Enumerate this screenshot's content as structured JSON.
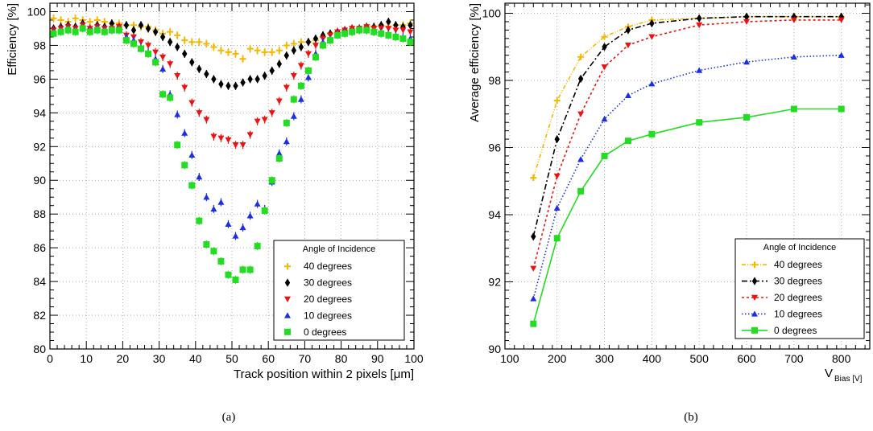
{
  "colors": {
    "40 degrees": "#f5b800",
    "30 degrees": "#000000",
    "20 degrees": "#ee1111",
    "10 degrees": "#1a2ee8",
    "0 degrees": "#22dd22"
  },
  "chart_data": [
    {
      "type": "scatter",
      "caption": "(a)",
      "xlabel": "Track position within 2 pixels [μm]",
      "ylabel": "Efficiency [%]",
      "xlim": [
        0,
        100
      ],
      "ylim": [
        80,
        100.5
      ],
      "x_ticks": [
        "0",
        "10",
        "20",
        "30",
        "40",
        "50",
        "60",
        "70",
        "80",
        "90",
        "100"
      ],
      "y_ticks": [
        "80",
        "82",
        "84",
        "86",
        "88",
        "90",
        "92",
        "94",
        "96",
        "98",
        "100"
      ],
      "grid": true,
      "legend": {
        "title": "Angle of Incidence",
        "position": "bottom-right"
      },
      "x": [
        1,
        3,
        5,
        7,
        9,
        11,
        13,
        15,
        17,
        19,
        21,
        23,
        25,
        27,
        29,
        31,
        33,
        35,
        37,
        39,
        41,
        43,
        45,
        47,
        49,
        51,
        53,
        55,
        57,
        59,
        61,
        63,
        65,
        67,
        69,
        71,
        73,
        75,
        77,
        79,
        81,
        83,
        85,
        87,
        89,
        91,
        93,
        95,
        97,
        99
      ],
      "series": [
        {
          "name": "40 degrees",
          "marker": "cross",
          "values": [
            99.6,
            99.5,
            99.4,
            99.6,
            99.5,
            99.4,
            99.5,
            99.4,
            99.3,
            99.3,
            99.2,
            99.2,
            99.1,
            99.1,
            98.9,
            98.7,
            98.8,
            98.6,
            98.3,
            98.2,
            98.2,
            98.1,
            97.9,
            97.7,
            97.6,
            97.5,
            97.2,
            97.8,
            97.7,
            97.6,
            97.6,
            97.7,
            98.0,
            98.1,
            98.2,
            98.2,
            98.3,
            98.5,
            98.7,
            98.8,
            98.9,
            98.9,
            99.0,
            99.1,
            99.1,
            99.2,
            99.1,
            99.2,
            99.2,
            99.3
          ]
        },
        {
          "name": "30 degrees",
          "marker": "diamond",
          "values": [
            99.0,
            99.1,
            99.2,
            99.1,
            99.3,
            99.0,
            99.2,
            99.1,
            99.3,
            99.1,
            99.2,
            98.9,
            99.2,
            99.0,
            98.8,
            98.5,
            98.2,
            97.9,
            97.5,
            97.0,
            96.6,
            96.3,
            96.0,
            95.7,
            95.6,
            95.6,
            95.8,
            96.0,
            96.0,
            96.2,
            96.5,
            96.9,
            97.4,
            97.7,
            97.9,
            98.2,
            98.4,
            98.6,
            98.7,
            98.8,
            98.9,
            99.0,
            99.0,
            99.1,
            99.1,
            99.2,
            99.4,
            99.2,
            99.1,
            99.2
          ]
        },
        {
          "name": "20 degrees",
          "marker": "down-triangle",
          "values": [
            98.9,
            99.0,
            99.1,
            99.0,
            99.2,
            99.0,
            99.1,
            99.0,
            99.0,
            99.1,
            98.6,
            98.5,
            98.2,
            98.0,
            97.6,
            97.3,
            96.9,
            96.2,
            95.5,
            94.6,
            94.0,
            93.6,
            92.6,
            92.5,
            92.4,
            92.1,
            92.1,
            92.7,
            93.5,
            93.6,
            94.0,
            94.7,
            95.5,
            96.2,
            96.8,
            97.5,
            98.0,
            98.4,
            98.6,
            98.8,
            98.9,
            99.0,
            99.0,
            99.1,
            99.0,
            99.0,
            99.0,
            98.9,
            98.9,
            98.8
          ]
        },
        {
          "name": "10 degrees",
          "marker": "up-triangle",
          "values": [
            98.8,
            98.9,
            99.0,
            98.9,
            99.1,
            98.9,
            99.0,
            98.9,
            98.9,
            98.9,
            98.5,
            98.3,
            97.9,
            97.6,
            97.2,
            96.6,
            95.1,
            93.9,
            92.8,
            91.5,
            90.2,
            89.0,
            88.3,
            88.7,
            87.4,
            86.7,
            87.2,
            87.9,
            88.6,
            88.3,
            89.9,
            91.6,
            92.3,
            93.8,
            94.8,
            96.1,
            97.5,
            98.2,
            98.4,
            98.7,
            98.8,
            98.8,
            98.9,
            98.9,
            98.8,
            98.8,
            98.7,
            98.6,
            98.5,
            98.4
          ]
        },
        {
          "name": "0 degrees",
          "marker": "square",
          "values": [
            98.7,
            98.8,
            98.9,
            98.8,
            99.0,
            98.8,
            98.9,
            98.8,
            98.9,
            98.9,
            98.3,
            98.1,
            97.8,
            97.5,
            97.0,
            95.1,
            94.9,
            92.1,
            90.9,
            89.7,
            87.6,
            86.2,
            85.8,
            85.2,
            84.4,
            84.1,
            84.7,
            84.7,
            86.1,
            88.2,
            90.0,
            91.3,
            93.4,
            94.8,
            95.6,
            96.5,
            97.3,
            98.0,
            98.3,
            98.6,
            98.7,
            98.8,
            98.9,
            98.9,
            98.8,
            98.7,
            98.6,
            98.5,
            98.4,
            98.2
          ]
        }
      ]
    },
    {
      "type": "line",
      "caption": "(b)",
      "xlabel": "V",
      "xlabel_sub": "Bias [V]",
      "ylabel": "Average efficiency [%]",
      "xlim": [
        90,
        860
      ],
      "ylim": [
        90,
        100.3
      ],
      "x_ticks": [
        "100",
        "200",
        "300",
        "400",
        "500",
        "600",
        "700",
        "800"
      ],
      "y_ticks": [
        "90",
        "92",
        "94",
        "96",
        "98",
        "100"
      ],
      "grid": true,
      "legend": {
        "title": "Angle of Incidence",
        "position": "bottom-right"
      },
      "x": [
        150,
        200,
        250,
        300,
        350,
        400,
        500,
        600,
        700,
        800
      ],
      "series": [
        {
          "name": "40 degrees",
          "marker": "cross",
          "line": "dash-dot-dot",
          "values": [
            95.1,
            97.4,
            98.7,
            99.3,
            99.6,
            99.8,
            99.85,
            99.9,
            99.9,
            99.9
          ]
        },
        {
          "name": "30 degrees",
          "marker": "diamond",
          "line": "dash-dot",
          "values": [
            93.35,
            96.25,
            98.05,
            99.0,
            99.5,
            99.7,
            99.85,
            99.9,
            99.9,
            99.9
          ]
        },
        {
          "name": "20 degrees",
          "marker": "down-triangle",
          "line": "dashed",
          "values": [
            92.4,
            95.15,
            97.0,
            98.4,
            99.05,
            99.3,
            99.65,
            99.75,
            99.8,
            99.8
          ]
        },
        {
          "name": "10 degrees",
          "marker": "up-triangle",
          "line": "dotted",
          "values": [
            91.5,
            94.2,
            95.65,
            96.85,
            97.55,
            97.9,
            98.3,
            98.55,
            98.7,
            98.75
          ]
        },
        {
          "name": "0 degrees",
          "marker": "square",
          "line": "solid",
          "values": [
            90.75,
            93.3,
            94.7,
            95.75,
            96.2,
            96.4,
            96.75,
            96.9,
            97.15,
            97.15
          ]
        }
      ]
    }
  ]
}
